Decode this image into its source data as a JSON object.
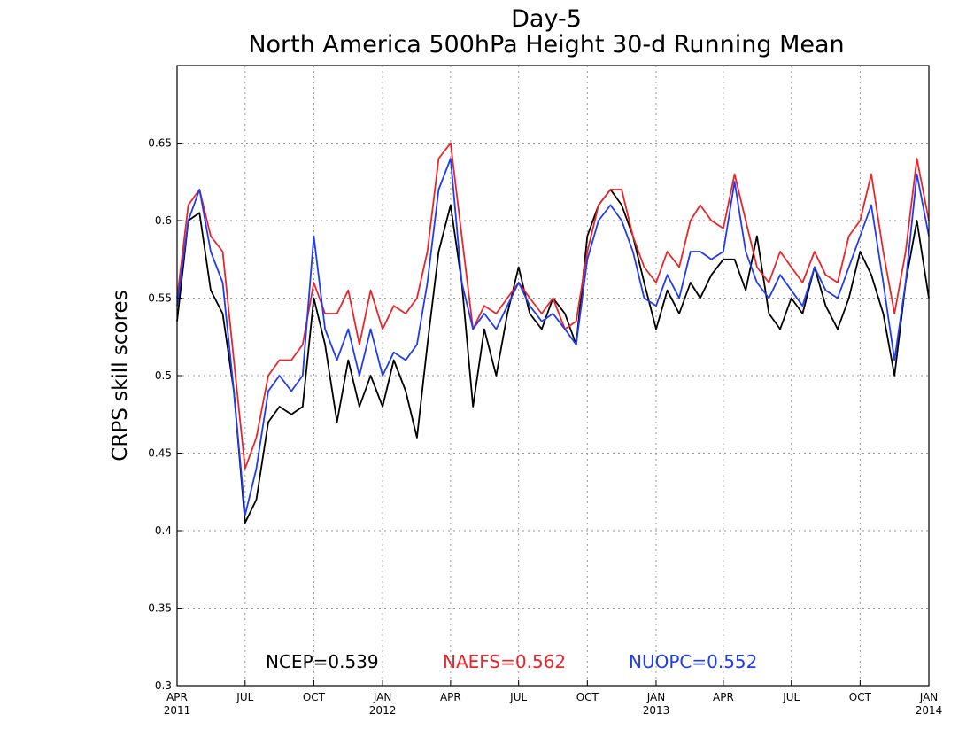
{
  "chart_data": {
    "type": "line",
    "title": "Day-5",
    "subtitle": "North America 500hPa Height 30-d Running Mean",
    "xlabel": "",
    "ylabel": "CRPS skill scores",
    "ylim": [
      0.3,
      0.7
    ],
    "yticks": [
      0.3,
      0.35,
      0.4,
      0.45,
      0.5,
      0.55,
      0.6,
      0.65
    ],
    "xlim": [
      "2011-04-01",
      "2014-01-01"
    ],
    "xticks": [
      {
        "date": "2011-04-01",
        "label": "APR",
        "year": "2011"
      },
      {
        "date": "2011-07-01",
        "label": "JUL",
        "year": ""
      },
      {
        "date": "2011-10-01",
        "label": "OCT",
        "year": ""
      },
      {
        "date": "2012-01-01",
        "label": "JAN",
        "year": "2012"
      },
      {
        "date": "2012-04-01",
        "label": "APR",
        "year": ""
      },
      {
        "date": "2012-07-01",
        "label": "JUL",
        "year": ""
      },
      {
        "date": "2012-10-01",
        "label": "OCT",
        "year": ""
      },
      {
        "date": "2013-01-01",
        "label": "JAN",
        "year": "2013"
      },
      {
        "date": "2013-04-01",
        "label": "APR",
        "year": ""
      },
      {
        "date": "2013-07-01",
        "label": "JUL",
        "year": ""
      },
      {
        "date": "2013-10-01",
        "label": "OCT",
        "year": ""
      },
      {
        "date": "2014-01-01",
        "label": "JAN",
        "year": "2014"
      }
    ],
    "grid": true,
    "legend_position": "bottom-center",
    "x": [
      "2011-04-01",
      "2011-04-16",
      "2011-05-01",
      "2011-05-16",
      "2011-06-01",
      "2011-06-16",
      "2011-07-01",
      "2011-07-16",
      "2011-08-01",
      "2011-08-16",
      "2011-09-01",
      "2011-09-16",
      "2011-10-01",
      "2011-10-16",
      "2011-11-01",
      "2011-11-16",
      "2011-12-01",
      "2011-12-16",
      "2012-01-01",
      "2012-01-16",
      "2012-02-01",
      "2012-02-16",
      "2012-03-01",
      "2012-03-16",
      "2012-04-01",
      "2012-04-16",
      "2012-05-01",
      "2012-05-16",
      "2012-06-01",
      "2012-06-16",
      "2012-07-01",
      "2012-07-16",
      "2012-08-01",
      "2012-08-16",
      "2012-09-01",
      "2012-09-16",
      "2012-10-01",
      "2012-10-16",
      "2012-11-01",
      "2012-11-16",
      "2012-12-01",
      "2012-12-16",
      "2013-01-01",
      "2013-01-16",
      "2013-02-01",
      "2013-02-16",
      "2013-03-01",
      "2013-03-16",
      "2013-04-01",
      "2013-04-16",
      "2013-05-01",
      "2013-05-16",
      "2013-06-01",
      "2013-06-16",
      "2013-07-01",
      "2013-07-16",
      "2013-08-01",
      "2013-08-16",
      "2013-09-01",
      "2013-09-16",
      "2013-10-01",
      "2013-10-16",
      "2013-11-01",
      "2013-11-16",
      "2013-12-01",
      "2013-12-16",
      "2014-01-01"
    ],
    "series": [
      {
        "name": "NCEP",
        "color": "#000000",
        "values": [
          0.535,
          0.6,
          0.605,
          0.555,
          0.54,
          0.49,
          0.405,
          0.42,
          0.47,
          0.48,
          0.475,
          0.48,
          0.55,
          0.52,
          0.47,
          0.51,
          0.48,
          0.5,
          0.48,
          0.51,
          0.49,
          0.46,
          0.52,
          0.58,
          0.61,
          0.56,
          0.48,
          0.53,
          0.5,
          0.54,
          0.57,
          0.54,
          0.53,
          0.55,
          0.54,
          0.52,
          0.59,
          0.61,
          0.62,
          0.61,
          0.59,
          0.56,
          0.53,
          0.555,
          0.54,
          0.56,
          0.55,
          0.565,
          0.575,
          0.575,
          0.555,
          0.59,
          0.54,
          0.53,
          0.55,
          0.54,
          0.57,
          0.545,
          0.53,
          0.55,
          0.58,
          0.565,
          0.54,
          0.5,
          0.56,
          0.6,
          0.55
        ]
      },
      {
        "name": "NAEFS",
        "color": "#e8262a",
        "values": [
          0.55,
          0.61,
          0.62,
          0.59,
          0.58,
          0.51,
          0.44,
          0.46,
          0.5,
          0.51,
          0.51,
          0.52,
          0.56,
          0.54,
          0.54,
          0.555,
          0.52,
          0.555,
          0.53,
          0.545,
          0.54,
          0.55,
          0.58,
          0.64,
          0.65,
          0.59,
          0.53,
          0.545,
          0.54,
          0.55,
          0.56,
          0.55,
          0.54,
          0.55,
          0.53,
          0.535,
          0.58,
          0.61,
          0.62,
          0.62,
          0.59,
          0.57,
          0.56,
          0.58,
          0.57,
          0.6,
          0.61,
          0.6,
          0.595,
          0.63,
          0.6,
          0.57,
          0.56,
          0.58,
          0.57,
          0.56,
          0.58,
          0.565,
          0.56,
          0.59,
          0.6,
          0.63,
          0.58,
          0.54,
          0.58,
          0.64,
          0.6
        ]
      },
      {
        "name": "NUOPC",
        "color": "#1f3cf0",
        "values": [
          0.545,
          0.6,
          0.62,
          0.58,
          0.56,
          0.49,
          0.41,
          0.44,
          0.49,
          0.5,
          0.49,
          0.5,
          0.59,
          0.53,
          0.51,
          0.53,
          0.5,
          0.53,
          0.5,
          0.515,
          0.51,
          0.52,
          0.56,
          0.62,
          0.64,
          0.56,
          0.53,
          0.54,
          0.53,
          0.545,
          0.56,
          0.545,
          0.535,
          0.54,
          0.53,
          0.52,
          0.575,
          0.6,
          0.61,
          0.6,
          0.58,
          0.55,
          0.545,
          0.565,
          0.55,
          0.58,
          0.58,
          0.575,
          0.58,
          0.625,
          0.58,
          0.56,
          0.55,
          0.565,
          0.555,
          0.545,
          0.57,
          0.555,
          0.55,
          0.57,
          0.59,
          0.61,
          0.56,
          0.51,
          0.56,
          0.63,
          0.59
        ]
      }
    ],
    "legend": [
      {
        "label": "NCEP=0.539",
        "color": "#000000"
      },
      {
        "label": "NAEFS=0.562",
        "color": "#e8262a"
      },
      {
        "label": "NUOPC=0.552",
        "color": "#1f3cf0"
      }
    ]
  }
}
